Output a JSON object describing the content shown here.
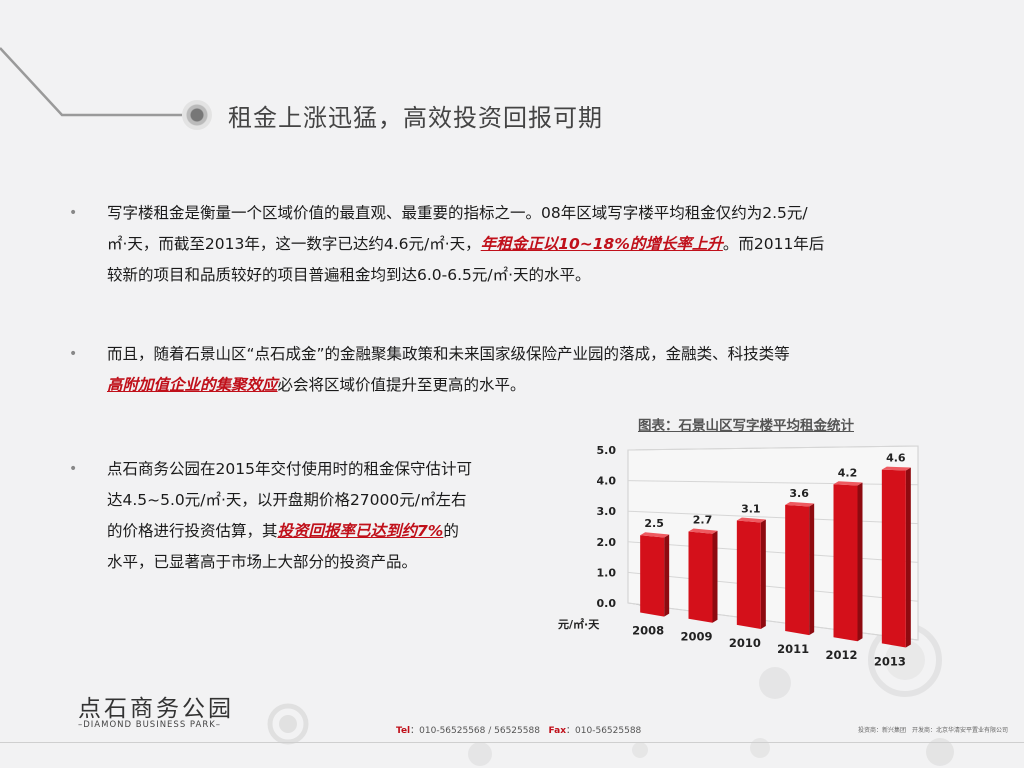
{
  "title": "租金上涨迅猛，高效投资回报可期",
  "paragraphs": [
    {
      "lines": [
        "写字楼租金是衡量一个区域价值的最直观、最重要的指标之一。08年区域写字楼平均租金仅约为2.5元/",
        "㎡·天，而截至2013年，这一数字已达约4.6元/㎡·天，",
        "。而2011年后",
        "较新的项目和品质较好的项目普遍租金均到达6.0-6.5元/㎡·天的水平。"
      ],
      "highlight": "年租金正以10~18%的增长率上升"
    },
    {
      "line1": "而且，随着石景山区“点石成金”的金融聚集政策和未来国家级保险产业园的落成，金融类、科技类等",
      "highlight": "高附加值企业的集聚效应",
      "line2_rest": "必会将区域价值提升至更高的水平。"
    },
    {
      "line1": "点石商务公园在2015年交付使用时的租金保守估计可",
      "line2": "达4.5~5.0元/㎡·天，以开盘期价格27000元/㎡左右",
      "line3_pre": "的价格进行投资估算，其",
      "highlight": "投资回报率已达到约7%",
      "line3_post": "的",
      "line4": "水平，已显著高于市场上大部分的投资产品。"
    }
  ],
  "bullet": "•",
  "chart_data": {
    "type": "bar",
    "title": "图表：石景山区写字楼平均租金统计",
    "categories": [
      "2008",
      "2009",
      "2010",
      "2011",
      "2012",
      "2013"
    ],
    "values": [
      2.5,
      2.7,
      3.1,
      3.6,
      4.2,
      4.6
    ],
    "value_labels": [
      "2.5",
      "2.7",
      "3.1",
      "3.6",
      "4.2",
      "4.6"
    ],
    "ylabel": "元/㎡·天",
    "ylim": [
      0,
      5
    ],
    "yticks": [
      "0.0",
      "1.0",
      "2.0",
      "3.0",
      "4.0",
      "5.0"
    ],
    "grid": true,
    "bar_color": "#d4101a"
  },
  "logo": {
    "name": "点石商务公园",
    "sub": "–DIAMOND BUSINESS PARK–"
  },
  "contact": {
    "tel_label": "Tel",
    "tel": "：010-56525568 / 56525588",
    "fax_label": "Fax",
    "fax": "：010-56525588"
  },
  "footer_right": "投资商：新兴集团　开发商：北京华清安平置业有限公司",
  "colors": {
    "accent": "#c0101a",
    "background": "#f2f2f3"
  }
}
